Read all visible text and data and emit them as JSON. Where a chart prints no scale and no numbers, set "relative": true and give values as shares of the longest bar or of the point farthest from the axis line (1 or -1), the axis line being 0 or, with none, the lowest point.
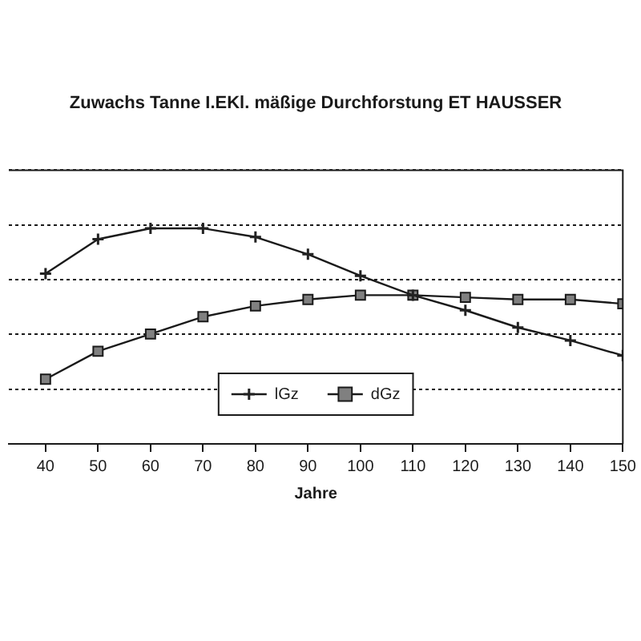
{
  "chart_data": {
    "type": "line",
    "title": "Zuwachs Tanne I.EKl. mäßige Durchforstung ET HAUSSER",
    "xlabel": "Jahre",
    "x": [
      40,
      50,
      60,
      70,
      80,
      90,
      100,
      110,
      120,
      130,
      140,
      150
    ],
    "xlim": [
      33,
      150
    ],
    "xticks": [
      40,
      50,
      60,
      70,
      80,
      90,
      100,
      110,
      120,
      130,
      140,
      150
    ],
    "relative": true,
    "grid": "y",
    "legend": "bottom",
    "line_style": "solid",
    "series": [
      {
        "name": "lGz",
        "color": "#222222",
        "marker": "cross",
        "values": [
          0.79,
          0.95,
          1,
          1,
          0.96,
          0.88,
          0.78,
          0.69,
          0.62,
          0.54,
          0.48,
          0.41
        ]
      },
      {
        "name": "dGz",
        "color": "#808080",
        "marker": "square",
        "values": [
          0.3,
          0.43,
          0.51,
          0.59,
          0.64,
          0.67,
          0.69,
          0.69,
          0.68,
          0.67,
          0.67,
          0.65
        ]
      }
    ]
  }
}
